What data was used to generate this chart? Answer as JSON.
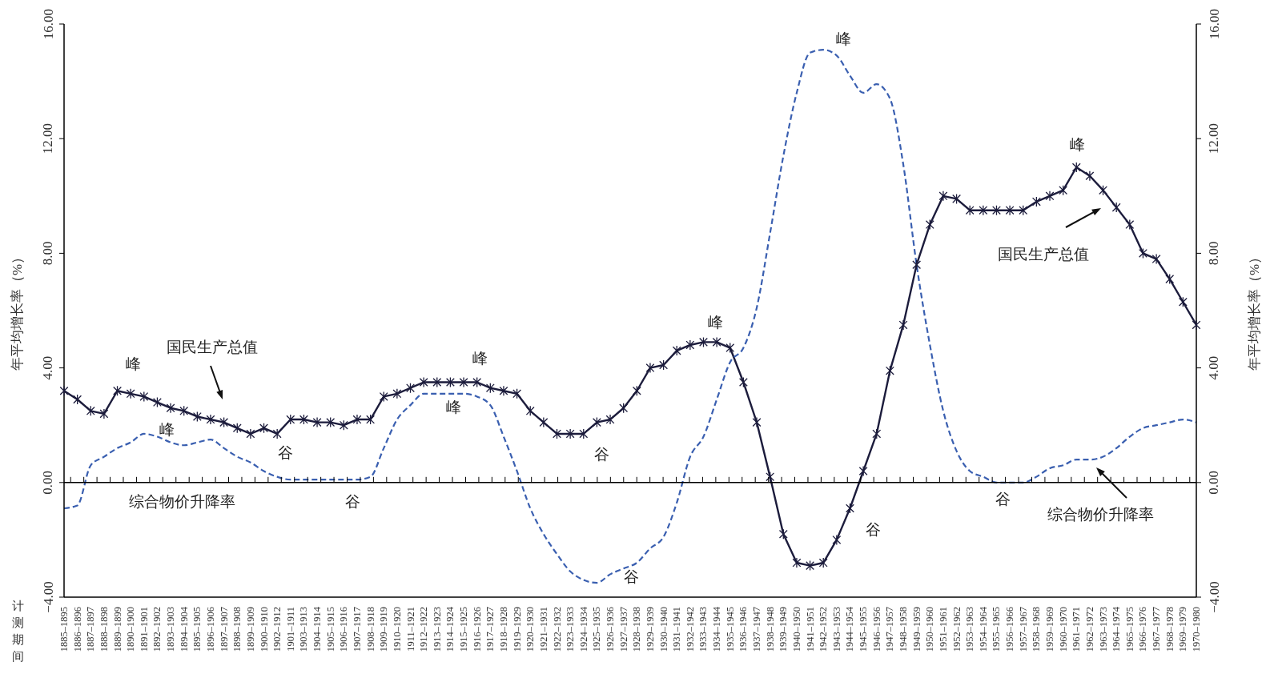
{
  "chart_data": {
    "type": "line",
    "xlabel": "计测期间",
    "ylabel": "年平均增长率（%）",
    "y2label": "年平均增长率（%）",
    "categories": [
      "1885–1895",
      "1886–1896",
      "1887–1897",
      "1888–1898",
      "1889–1899",
      "1890–1900",
      "1891–1901",
      "1892–1902",
      "1893–1903",
      "1894–1904",
      "1895–1905",
      "1896–1906",
      "1897–1907",
      "1898–1908",
      "1899–1909",
      "1900–1910",
      "1902–1912",
      "1901–1911",
      "1903–1913",
      "1904–1914",
      "1905–1915",
      "1906–1916",
      "1907–1917",
      "1908–1918",
      "1909–1919",
      "1910–1920",
      "1911–1921",
      "1912–1922",
      "1913–1923",
      "1914–1924",
      "1915–1925",
      "1916–1926",
      "1917–1927",
      "1918–1928",
      "1919–1929",
      "1920–1930",
      "1921–1931",
      "1922–1932",
      "1923–1933",
      "1924–1934",
      "1925–1935",
      "1926–1936",
      "1927–1937",
      "1928–1938",
      "1929–1939",
      "1930–1940",
      "1931–1941",
      "1932–1942",
      "1933–1943",
      "1934–1944",
      "1935–1945",
      "1936–1946",
      "1937–1947",
      "1938–1948",
      "1939–1949",
      "1940–1950",
      "1941–1951",
      "1942–1952",
      "1943–1953",
      "1944–1954",
      "1945–1955",
      "1946–1956",
      "1947–1957",
      "1948–1958",
      "1949–1959",
      "1950–1960",
      "1951–1961",
      "1952–1962",
      "1953–1963",
      "1954–1964",
      "1955–1965",
      "1956–1966",
      "1957–1967",
      "1958–1968",
      "1959–1969",
      "1960–1970",
      "1961–1971",
      "1962–1972",
      "1963–1973",
      "1964–1974",
      "1965–1975",
      "1966–1976",
      "1967–1977",
      "1968–1978",
      "1969–1979",
      "1970–1980"
    ],
    "series": [
      {
        "color": "#1c1c3c",
        "marker": "cross",
        "line_style": "solid",
        "values": [
          3.2,
          2.9,
          2.5,
          2.4,
          3.2,
          3.1,
          3.0,
          2.8,
          2.6,
          2.5,
          2.3,
          2.2,
          2.1,
          1.9,
          1.7,
          1.9,
          1.7,
          2.2,
          2.2,
          2.1,
          2.1,
          2.0,
          2.2,
          2.2,
          3.0,
          3.1,
          3.3,
          3.5,
          3.5,
          3.5,
          3.5,
          3.5,
          3.3,
          3.2,
          3.1,
          2.5,
          2.1,
          1.7,
          1.7,
          1.7,
          2.1,
          2.2,
          2.6,
          3.2,
          4.0,
          4.1,
          4.6,
          4.8,
          4.9,
          4.9,
          4.7,
          3.5,
          2.1,
          0.2,
          -1.8,
          -2.8,
          -2.9,
          -2.8,
          -2.0,
          -0.9,
          0.4,
          1.7,
          3.9,
          5.5,
          7.6,
          9.0,
          10.0,
          9.9,
          9.5,
          9.5,
          9.5,
          9.5,
          9.5,
          9.8,
          10.0,
          10.2,
          11.0,
          10.7,
          10.2,
          9.6,
          9.0,
          8.0,
          7.8,
          7.1,
          6.3,
          5.5
        ]
      },
      {
        "color": "#3a5fb0",
        "marker": "none",
        "line_style": "dashed",
        "values": [
          -0.9,
          -0.8,
          0.6,
          0.9,
          1.2,
          1.4,
          1.7,
          1.6,
          1.4,
          1.3,
          1.4,
          1.5,
          1.2,
          0.9,
          0.7,
          0.4,
          0.2,
          0.1,
          0.1,
          0.1,
          0.1,
          0.1,
          0.1,
          0.2,
          1.2,
          2.2,
          2.7,
          3.1,
          3.1,
          3.1,
          3.1,
          3.0,
          2.7,
          1.6,
          0.4,
          -0.9,
          -1.8,
          -2.5,
          -3.1,
          -3.4,
          -3.5,
          -3.2,
          -3.0,
          -2.8,
          -2.3,
          -1.9,
          -0.7,
          0.9,
          1.6,
          2.9,
          4.2,
          4.7,
          6.1,
          8.7,
          11.4,
          13.6,
          15.0,
          15.1,
          14.9,
          14.2,
          13.6,
          13.9,
          13.4,
          11.1,
          7.6,
          4.8,
          2.5,
          1.1,
          0.4,
          0.2,
          0.0,
          0.0,
          0.0,
          0.2,
          0.5,
          0.6,
          0.8,
          0.8,
          0.9,
          1.2,
          1.6,
          1.9,
          2.0,
          2.1,
          2.2,
          2.1
        ]
      }
    ],
    "ylim": [
      -4,
      16
    ],
    "yticks": [
      {
        "value": -4,
        "label": "−4.00"
      },
      {
        "value": 0,
        "label": "0.00"
      },
      {
        "value": 4,
        "label": "4.00"
      },
      {
        "value": 8,
        "label": "8.00"
      },
      {
        "value": 12,
        "label": "12.00"
      },
      {
        "value": 16,
        "label": "16.00"
      }
    ],
    "y2lim": [
      -4,
      16
    ],
    "y2ticks": [
      {
        "value": -4,
        "label": "−4.00"
      },
      {
        "value": 0,
        "label": "0.00"
      },
      {
        "value": 4,
        "label": "4.00"
      },
      {
        "value": 8,
        "label": "8.00"
      },
      {
        "value": 12,
        "label": "12.00"
      },
      {
        "value": 16,
        "label": "16.00"
      }
    ],
    "annotations": [
      "峰",
      "峰",
      "谷",
      "谷",
      "国民生产总值",
      "综合物价升降率",
      "峰",
      "峰",
      "谷",
      "谷",
      "峰",
      "峰",
      "峰",
      "国民生产总值",
      "谷",
      "谷",
      "综合物价升降率"
    ]
  }
}
